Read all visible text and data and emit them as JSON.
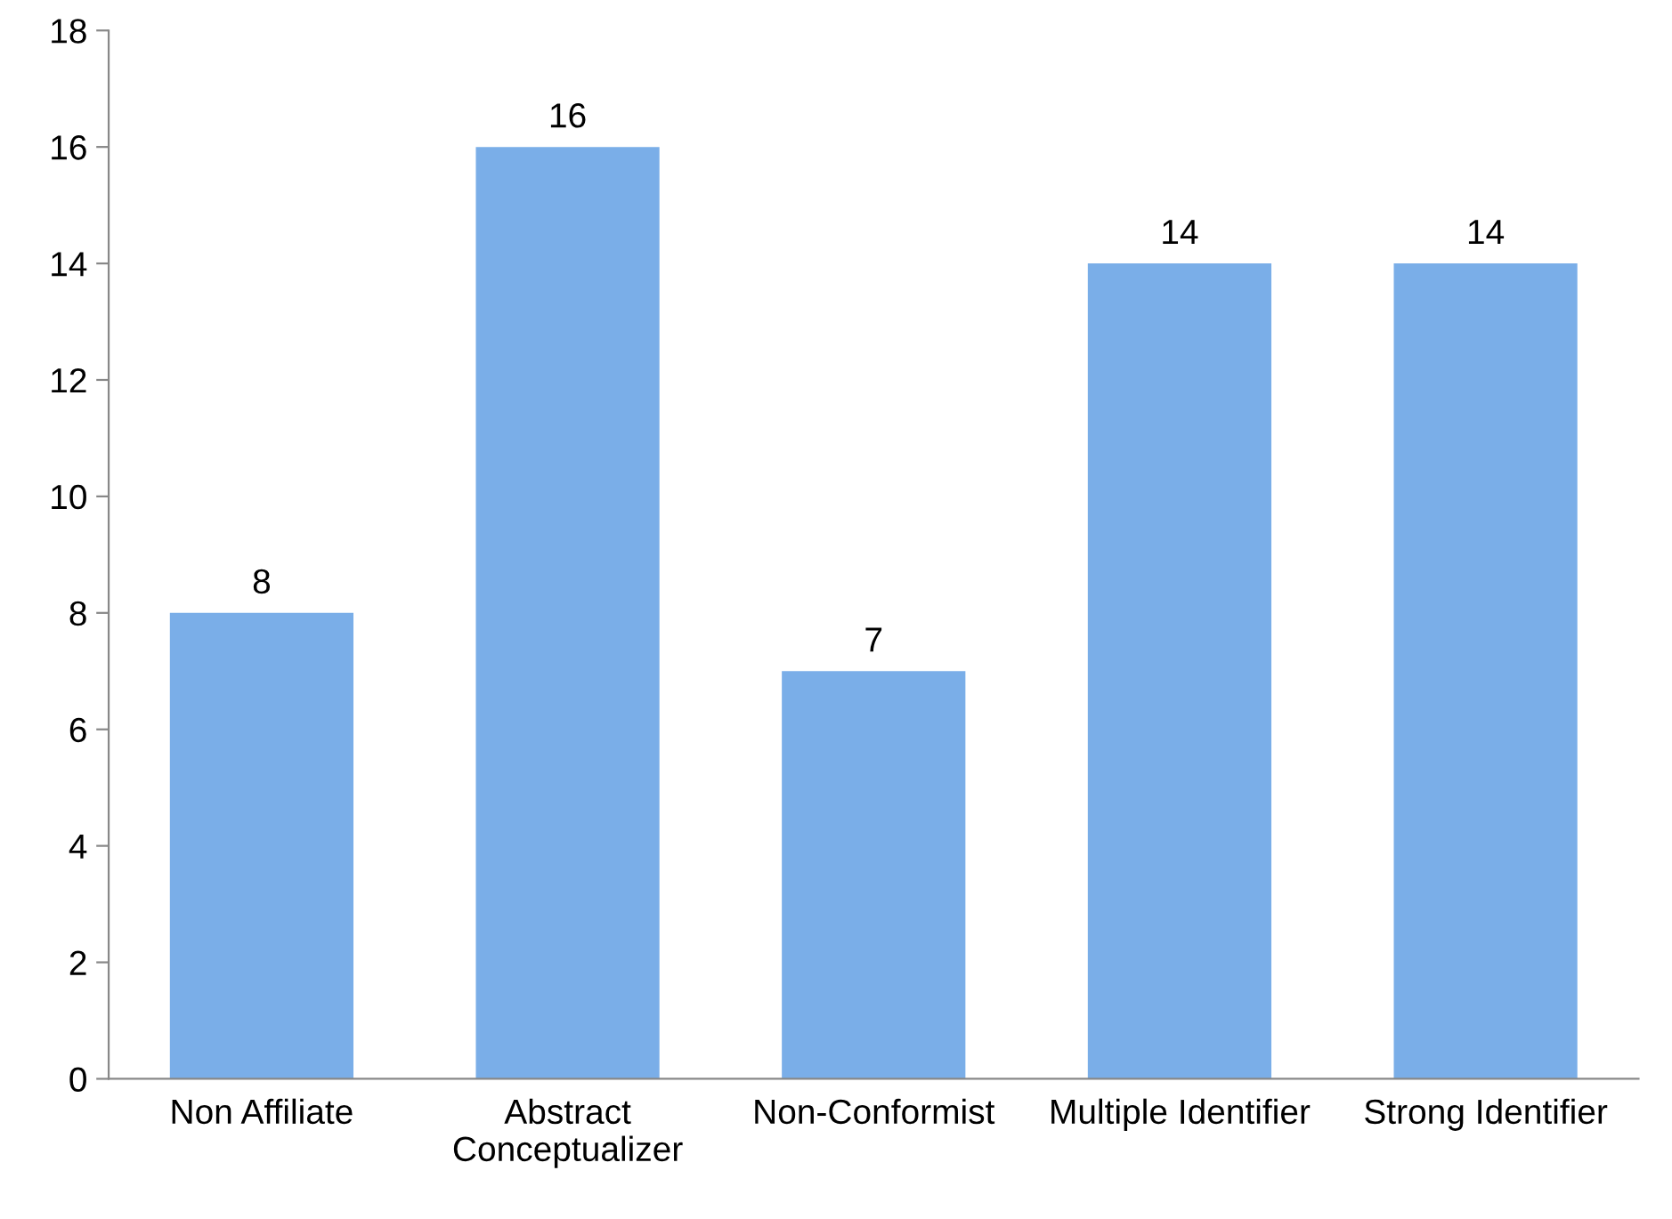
{
  "chart_data": {
    "type": "bar",
    "categories": [
      "Non Affiliate",
      "Abstract\nConceptualizer",
      "Non-Conformist",
      "Multiple Identifier",
      "Strong Identifier"
    ],
    "values": [
      8,
      16,
      7,
      14,
      14
    ],
    "color": "#7aaee8",
    "ylim": [
      0,
      18
    ],
    "yticks": [
      0,
      2,
      4,
      6,
      8,
      10,
      12,
      14,
      16,
      18
    ],
    "data_labels": true,
    "grid": false,
    "legend": false
  }
}
